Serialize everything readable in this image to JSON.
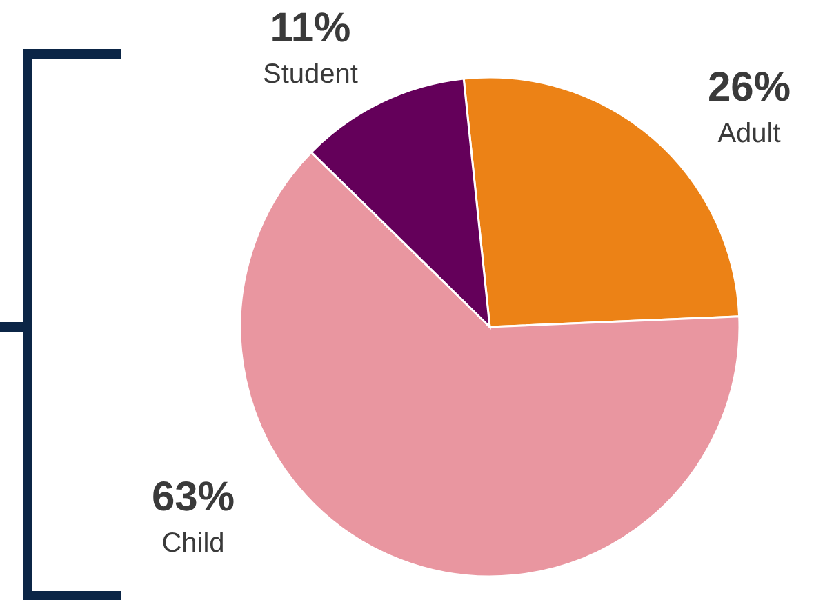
{
  "chart_data": {
    "type": "pie",
    "categories": [
      "Adult",
      "Child",
      "Student"
    ],
    "values": [
      26,
      63,
      11
    ],
    "value_labels": [
      "26%",
      "63%",
      "11%"
    ],
    "colors": [
      "#ec8216",
      "#e996a0",
      "#64005a"
    ],
    "legend": false
  }
}
